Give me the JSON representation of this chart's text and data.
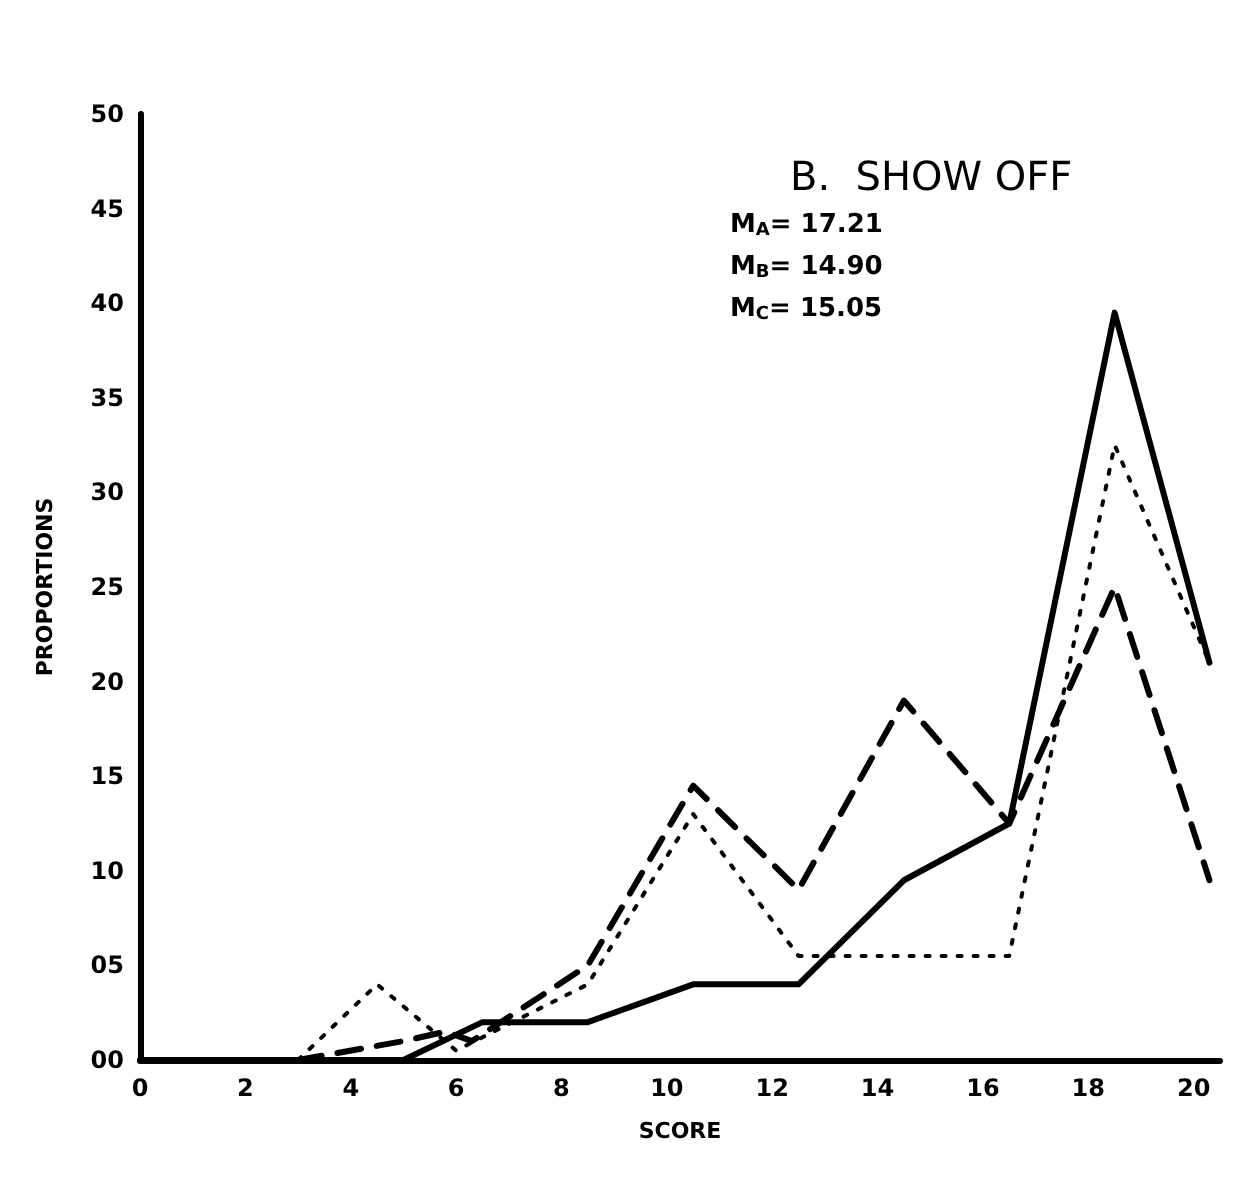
{
  "chart_data": {
    "type": "line",
    "title": "B.  SHOW OFF",
    "xlabel": "SCORE",
    "ylabel": "PROPORTIONS",
    "annotations": [
      "M$_{A}$= 17.21",
      "M$_{B}$= 14.90",
      "M$_{C}$= 15.05"
    ],
    "xlim": [
      0,
      20.5
    ],
    "xticks": [
      0,
      2,
      4,
      6,
      8,
      10,
      12,
      14,
      16,
      18,
      20
    ],
    "ylim": [
      0,
      50
    ],
    "yticks": [
      {
        "value": 0,
        "label": "00"
      },
      {
        "value": 5,
        "label": "05"
      },
      10,
      15,
      20,
      25,
      30,
      35,
      40,
      45,
      50
    ],
    "grid": false,
    "marker": "none",
    "series": [
      {
        "color": "#000000",
        "line_style": "solid",
        "x": [
          0,
          5,
          6.5,
          8.5,
          10.5,
          12.5,
          14.5,
          16.5,
          18.5,
          20.3
        ],
        "values": [
          0,
          0,
          2,
          2,
          4,
          4,
          9.5,
          12.5,
          39.5,
          21
        ]
      },
      {
        "color": "#000000",
        "line_style": "dashed",
        "x": [
          3,
          5,
          5.8,
          6.3,
          8.5,
          10.5,
          12.5,
          14.5,
          16.5,
          18.5,
          20.3
        ],
        "values": [
          0,
          1,
          1.5,
          1,
          5,
          14.5,
          9,
          19,
          12.5,
          25,
          9.5
        ]
      },
      {
        "color": "#000000",
        "line_style": "dotted",
        "x": [
          3,
          4.5,
          6,
          8.5,
          10.5,
          12.5,
          16.5,
          18.5,
          20.3
        ],
        "values": [
          0,
          4,
          0.5,
          4,
          13,
          5.5,
          5.5,
          32.5,
          21
        ]
      }
    ]
  }
}
